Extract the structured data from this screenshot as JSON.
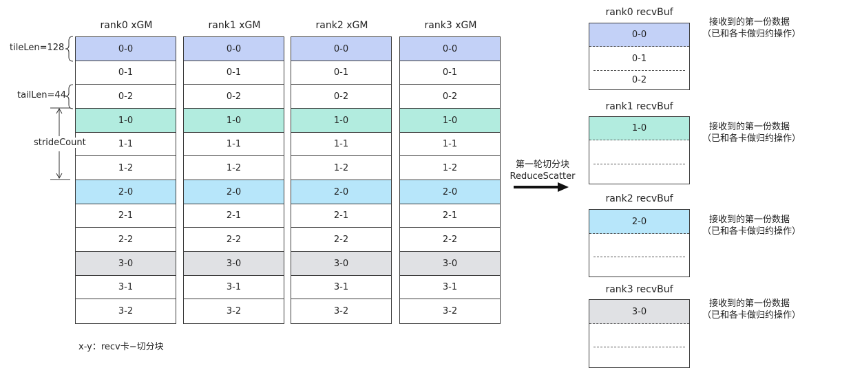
{
  "colors": {
    "row0": "#c3d1f7",
    "row1": "#b2ecdf",
    "row2": "#b7e6fa",
    "row3": "#e0e1e4",
    "white": "#ffffff",
    "border": "#3a3a3a"
  },
  "xgm_columns": [
    {
      "title": "rank0 xGM",
      "cells": [
        "0-0",
        "0-1",
        "0-2",
        "1-0",
        "1-1",
        "1-2",
        "2-0",
        "2-1",
        "2-2",
        "3-0",
        "3-1",
        "3-2"
      ]
    },
    {
      "title": "rank1 xGM",
      "cells": [
        "0-0",
        "0-1",
        "0-2",
        "1-0",
        "1-1",
        "1-2",
        "2-0",
        "2-1",
        "2-2",
        "3-0",
        "3-1",
        "3-2"
      ]
    },
    {
      "title": "rank2 xGM",
      "cells": [
        "0-0",
        "0-1",
        "0-2",
        "1-0",
        "1-1",
        "1-2",
        "2-0",
        "2-1",
        "2-2",
        "3-0",
        "3-1",
        "3-2"
      ]
    },
    {
      "title": "rank3 xGM",
      "cells": [
        "0-0",
        "0-1",
        "0-2",
        "1-0",
        "1-1",
        "1-2",
        "2-0",
        "2-1",
        "2-2",
        "3-0",
        "3-1",
        "3-2"
      ]
    }
  ],
  "left_labels": {
    "tile_len": "tileLen=128",
    "tail_len": "tailLen=44",
    "stride_count": "strideCount"
  },
  "footnote": "x-y：recv卡−切分块",
  "arrow": {
    "line1": "第一轮切分块",
    "line2": "ReduceScatter"
  },
  "recv_bufs": [
    {
      "title": "rank0 recvBuf",
      "rows": [
        "0-0",
        "0-1",
        "0-2"
      ],
      "note1": "接收到的第一份数据",
      "note2": "（已和各卡做归约操作）"
    },
    {
      "title": "rank1 recvBuf",
      "rows": [
        "1-0",
        "",
        ""
      ],
      "note1": "接收到的第一份数据",
      "note2": "（已和各卡做归约操作）"
    },
    {
      "title": "rank2 recvBuf",
      "rows": [
        "2-0",
        "",
        ""
      ],
      "note1": "接收到的第一份数据",
      "note2": "（已和各卡做归约操作）"
    },
    {
      "title": "rank3 recvBuf",
      "rows": [
        "3-0",
        "",
        ""
      ],
      "note1": "接收到的第一份数据",
      "note2": "（已和各卡做归约操作）"
    }
  ]
}
